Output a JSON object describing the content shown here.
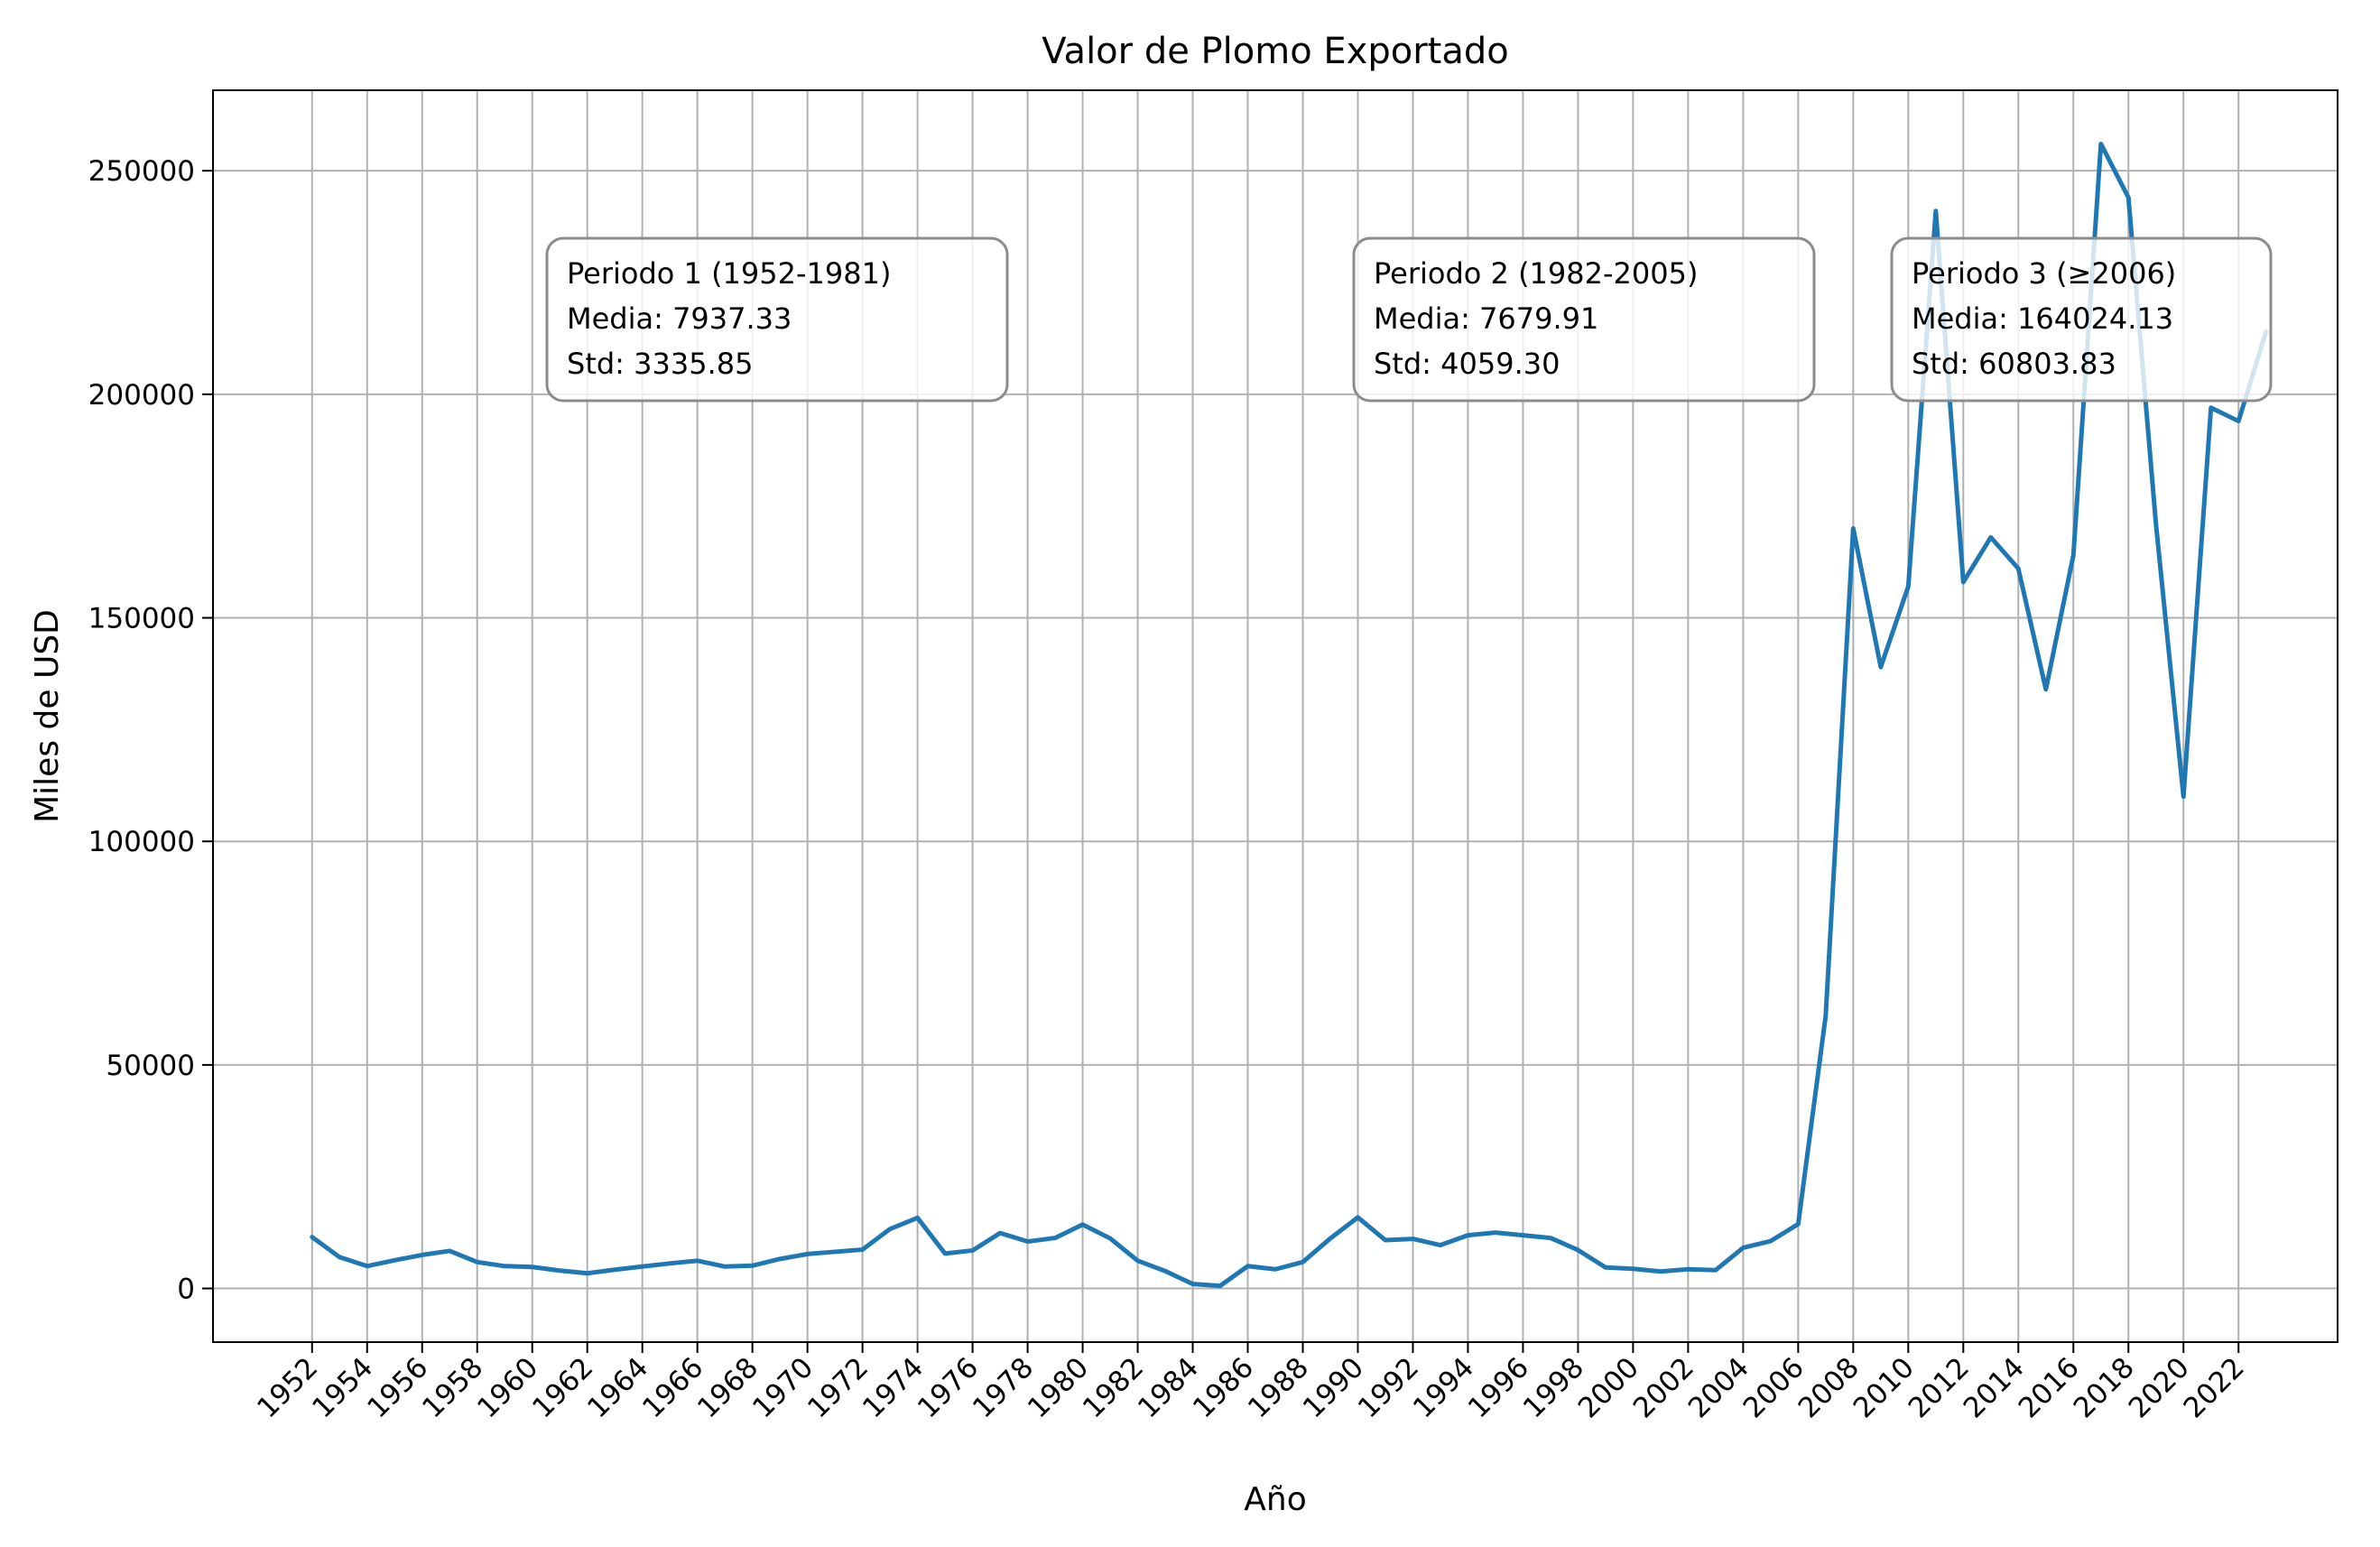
{
  "chart_data": {
    "type": "line",
    "title": "Valor de Plomo Exportado",
    "xlabel": "Año",
    "ylabel": "Miles de USD",
    "xlim": [
      1948.4,
      2025.6
    ],
    "ylim": [
      -12000,
      268000
    ],
    "grid": true,
    "line_color": "#1f77b4",
    "x_ticks": [
      "1952",
      "1954",
      "1956",
      "1958",
      "1960",
      "1962",
      "1964",
      "1966",
      "1968",
      "1970",
      "1972",
      "1974",
      "1976",
      "1978",
      "1980",
      "1982",
      "1984",
      "1986",
      "1988",
      "1990",
      "1992",
      "1994",
      "1996",
      "1998",
      "2000",
      "2002",
      "2004",
      "2006",
      "2008",
      "2010",
      "2012",
      "2014",
      "2016",
      "2018",
      "2020",
      "2022"
    ],
    "y_ticks": [
      "0",
      "50000",
      "100000",
      "150000",
      "200000",
      "250000"
    ],
    "x": [
      1952,
      1953,
      1954,
      1955,
      1956,
      1957,
      1958,
      1959,
      1960,
      1961,
      1962,
      1963,
      1964,
      1965,
      1966,
      1967,
      1968,
      1969,
      1970,
      1971,
      1972,
      1973,
      1974,
      1975,
      1976,
      1977,
      1978,
      1979,
      1980,
      1981,
      1982,
      1983,
      1984,
      1985,
      1986,
      1987,
      1988,
      1989,
      1990,
      1991,
      1992,
      1993,
      1994,
      1995,
      1996,
      1997,
      1998,
      1999,
      2000,
      2001,
      2002,
      2003,
      2004,
      2005,
      2006,
      2007,
      2008,
      2009,
      2010,
      2011,
      2012,
      2013,
      2014,
      2015,
      2016,
      2017,
      2018,
      2019,
      2020,
      2021,
      2022,
      2023
    ],
    "series": [
      {
        "values": [
          11500,
          7000,
          5000,
          6300,
          7500,
          8400,
          5900,
          5000,
          4800,
          4000,
          3400,
          4200,
          4900,
          5600,
          6200,
          4900,
          5100,
          6600,
          7700,
          8200,
          8700,
          13300,
          15800,
          7800,
          8500,
          12400,
          10500,
          11300,
          14300,
          11200,
          6200,
          3900,
          1000,
          600,
          5000,
          4300,
          5900,
          11200,
          15900,
          10800,
          11100,
          9700,
          11900,
          12500,
          11900,
          11300,
          8600,
          4700,
          4400,
          3800,
          4300,
          4100,
          9100,
          10600,
          14400,
          61000,
          170000,
          139000,
          157000,
          241000,
          158000,
          168000,
          161000,
          134000,
          164000,
          256000,
          244000,
          171000,
          110000,
          197000,
          194000,
          214000
        ]
      }
    ],
    "annotations": [
      [
        "Periodo 1 (1952-1981)",
        "Media: 7937.33",
        "Std: 3335.85"
      ],
      [
        "Periodo 2 (1982-2005)",
        "Media: 7679.91",
        "Std: 4059.30"
      ],
      [
        "Periodo 3 (≥2006)",
        "Media: 164024.13",
        "Std: 60803.83"
      ]
    ]
  }
}
